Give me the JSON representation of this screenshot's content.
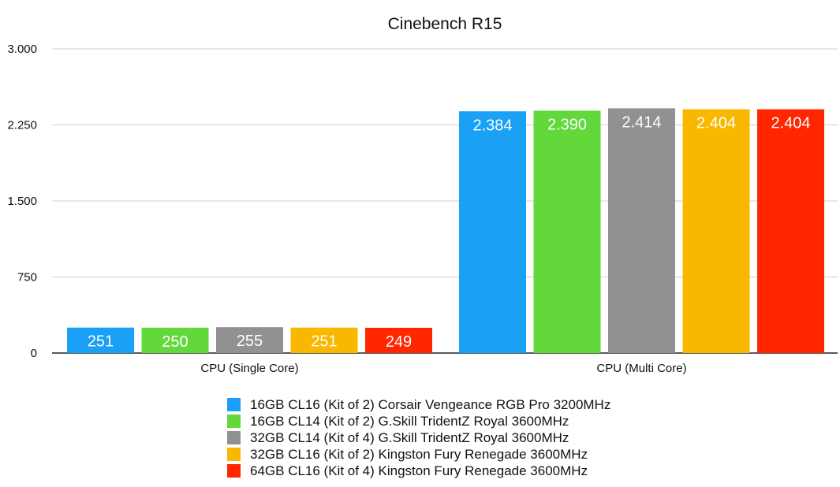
{
  "chart_data": {
    "type": "bar",
    "title": "Cinebench R15",
    "xlabel": "",
    "ylabel": "",
    "categories": [
      "CPU (Single Core)",
      "CPU (Multi Core)"
    ],
    "ylim": [
      0,
      3000
    ],
    "yticks": [
      0,
      750,
      1500,
      2250,
      3000
    ],
    "ytick_labels": [
      "0",
      "750",
      "1.500",
      "2.250",
      "3.000"
    ],
    "grid": true,
    "legend_position": "bottom",
    "series": [
      {
        "name": "16GB CL16 (Kit of 2) Corsair Vengeance RGB Pro 3200MHz",
        "color": "#1aa0f5",
        "values": [
          251,
          2384
        ],
        "labels": [
          "251",
          "2.384"
        ]
      },
      {
        "name": "16GB CL14 (Kit of 2) G.Skill TridentZ Royal 3600MHz",
        "color": "#62d83a",
        "values": [
          250,
          2390
        ],
        "labels": [
          "250",
          "2.390"
        ]
      },
      {
        "name": "32GB CL14 (Kit of 4) G.Skill TridentZ Royal 3600MHz",
        "color": "#919191",
        "values": [
          255,
          2414
        ],
        "labels": [
          "255",
          "2.414"
        ]
      },
      {
        "name": "32GB CL16 (Kit of 2) Kingston Fury Renegade 3600MHz",
        "color": "#f9b800",
        "values": [
          251,
          2404
        ],
        "labels": [
          "251",
          "2.404"
        ]
      },
      {
        "name": "64GB CL16 (Kit of 4) Kingston Fury Renegade 3600MHz",
        "color": "#ff2600",
        "values": [
          249,
          2404
        ],
        "labels": [
          "249",
          "2.404"
        ]
      }
    ]
  }
}
